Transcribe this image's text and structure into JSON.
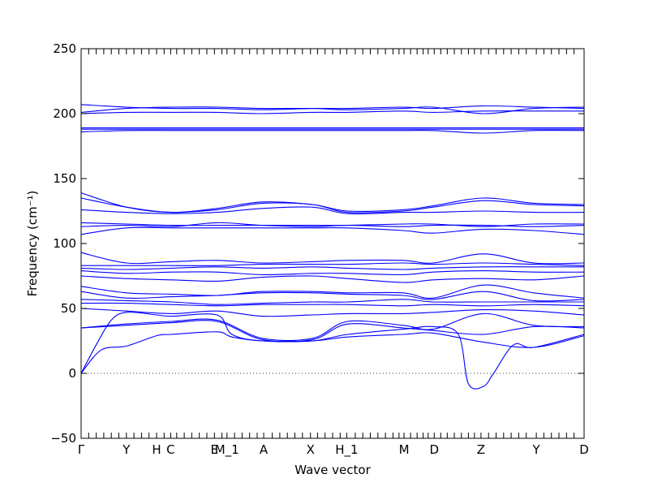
{
  "chart_data": {
    "type": "line",
    "title": "",
    "xlabel": "Wave vector",
    "ylabel": "Frequency (cm⁻¹)",
    "ylim": [
      -50,
      250
    ],
    "yticks": [
      -50,
      0,
      50,
      100,
      150,
      200,
      250
    ],
    "xlim": [
      0,
      1
    ],
    "grid": false,
    "line_color": "#0000ff",
    "zero_line": {
      "y": 0,
      "style": "dotted"
    },
    "high_symmetry_points": [
      {
        "label": "Γ",
        "x": 0.0
      },
      {
        "label": "Y",
        "x": 0.09
      },
      {
        "label": "H",
        "x": 0.15
      },
      {
        "label": "C",
        "x": 0.178
      },
      {
        "label": "E",
        "x": 0.265
      },
      {
        "label": "M_1",
        "x": 0.29
      },
      {
        "label": "A",
        "x": 0.363
      },
      {
        "label": "X",
        "x": 0.456
      },
      {
        "label": "H_1",
        "x": 0.528
      },
      {
        "label": "M",
        "x": 0.642
      },
      {
        "label": "D",
        "x": 0.702
      },
      {
        "label": "Z",
        "x": 0.795
      },
      {
        "label": "Y",
        "x": 0.905
      },
      {
        "label": "D",
        "x": 1.0
      }
    ],
    "minor_ticks": [
      0.015,
      0.03,
      0.045,
      0.06,
      0.075,
      0.105,
      0.12,
      0.135,
      0.165,
      0.19,
      0.205,
      0.22,
      0.235,
      0.25,
      0.28,
      0.305,
      0.32,
      0.335,
      0.35,
      0.38,
      0.395,
      0.41,
      0.425,
      0.44,
      0.47,
      0.485,
      0.5,
      0.515,
      0.545,
      0.56,
      0.575,
      0.59,
      0.605,
      0.62,
      0.632,
      0.655,
      0.668,
      0.68,
      0.69,
      0.715,
      0.728,
      0.742,
      0.756,
      0.77,
      0.782,
      0.81,
      0.825,
      0.84,
      0.855,
      0.87,
      0.885,
      0.92,
      0.935,
      0.95,
      0.965,
      0.98
    ],
    "series": [
      {
        "x": [
          0,
          0.09,
          0.18,
          0.27,
          0.36,
          0.46,
          0.53,
          0.64,
          0.7,
          0.8,
          0.9,
          1.0
        ],
        "values": [
          207,
          205,
          204,
          204,
          203,
          204,
          204,
          205,
          204,
          206,
          205,
          204
        ]
      },
      {
        "x": [
          0,
          0.09,
          0.18,
          0.27,
          0.36,
          0.46,
          0.53,
          0.64,
          0.7,
          0.8,
          0.9,
          1.0
        ],
        "values": [
          201,
          204,
          205,
          205,
          204,
          204,
          203,
          204,
          205,
          200,
          204,
          205
        ]
      },
      {
        "x": [
          0,
          0.09,
          0.18,
          0.27,
          0.36,
          0.46,
          0.53,
          0.64,
          0.7,
          0.8,
          0.9,
          1.0
        ],
        "values": [
          200,
          201,
          201,
          201,
          200,
          201,
          201,
          202,
          201,
          202,
          202,
          202
        ]
      },
      {
        "x": [
          0,
          0.09,
          0.18,
          0.27,
          0.36,
          0.46,
          0.53,
          0.64,
          0.7,
          0.8,
          0.9,
          1.0
        ],
        "values": [
          189,
          189,
          189,
          189,
          189,
          189,
          189,
          189,
          189,
          189,
          189,
          189
        ]
      },
      {
        "x": [
          0,
          0.09,
          0.18,
          0.27,
          0.36,
          0.46,
          0.53,
          0.64,
          0.7,
          0.8,
          0.9,
          1.0
        ],
        "values": [
          188,
          188,
          188,
          188,
          188,
          188,
          188,
          188,
          188,
          188,
          188,
          188
        ]
      },
      {
        "x": [
          0,
          0.09,
          0.18,
          0.27,
          0.36,
          0.46,
          0.53,
          0.64,
          0.7,
          0.8,
          0.9,
          1.0
        ],
        "values": [
          186,
          187,
          187,
          187,
          187,
          187,
          187,
          187,
          187,
          185,
          187,
          187
        ]
      },
      {
        "x": [
          0,
          0.09,
          0.18,
          0.27,
          0.36,
          0.46,
          0.53,
          0.64,
          0.7,
          0.8,
          0.9,
          1.0
        ],
        "values": [
          139,
          128,
          124,
          127,
          132,
          130,
          125,
          126,
          129,
          135,
          131,
          130
        ]
      },
      {
        "x": [
          0,
          0.09,
          0.18,
          0.27,
          0.36,
          0.46,
          0.53,
          0.64,
          0.7,
          0.8,
          0.9,
          1.0
        ],
        "values": [
          135,
          128,
          124,
          126,
          131,
          130,
          124,
          125,
          128,
          133,
          130,
          129
        ]
      },
      {
        "x": [
          0,
          0.09,
          0.18,
          0.27,
          0.36,
          0.46,
          0.53,
          0.64,
          0.7,
          0.8,
          0.9,
          1.0
        ],
        "values": [
          126,
          124,
          123,
          124,
          127,
          128,
          123,
          124,
          124,
          125,
          124,
          124
        ]
      },
      {
        "x": [
          0,
          0.09,
          0.18,
          0.27,
          0.36,
          0.46,
          0.53,
          0.64,
          0.7,
          0.8,
          0.9,
          1.0
        ],
        "values": [
          116,
          115,
          114,
          114,
          114,
          114,
          114,
          115,
          115,
          113,
          115,
          115
        ]
      },
      {
        "x": [
          0,
          0.09,
          0.18,
          0.27,
          0.36,
          0.46,
          0.53,
          0.64,
          0.7,
          0.8,
          0.9,
          1.0
        ],
        "values": [
          113,
          114,
          113,
          116,
          114,
          113,
          114,
          113,
          114,
          114,
          113,
          114
        ]
      },
      {
        "x": [
          0,
          0.09,
          0.18,
          0.27,
          0.36,
          0.46,
          0.53,
          0.64,
          0.7,
          0.8,
          0.9,
          1.0
        ],
        "values": [
          107,
          112,
          112,
          112,
          112,
          112,
          112,
          110,
          108,
          111,
          110,
          107
        ]
      },
      {
        "x": [
          0,
          0.09,
          0.18,
          0.27,
          0.36,
          0.46,
          0.53,
          0.64,
          0.7,
          0.8,
          0.9,
          1.0
        ],
        "values": [
          93,
          85,
          86,
          87,
          85,
          86,
          87,
          87,
          85,
          92,
          85,
          85
        ]
      },
      {
        "x": [
          0,
          0.09,
          0.18,
          0.27,
          0.36,
          0.46,
          0.53,
          0.64,
          0.7,
          0.8,
          0.9,
          1.0
        ],
        "values": [
          83,
          83,
          83,
          83,
          84,
          84,
          84,
          85,
          84,
          85,
          84,
          83
        ]
      },
      {
        "x": [
          0,
          0.09,
          0.18,
          0.27,
          0.36,
          0.46,
          0.53,
          0.64,
          0.7,
          0.8,
          0.9,
          1.0
        ],
        "values": [
          81,
          80,
          81,
          82,
          81,
          82,
          81,
          80,
          81,
          82,
          82,
          82
        ]
      },
      {
        "x": [
          0,
          0.09,
          0.18,
          0.27,
          0.36,
          0.46,
          0.53,
          0.64,
          0.7,
          0.8,
          0.9,
          1.0
        ],
        "values": [
          79,
          77,
          78,
          78,
          76,
          77,
          77,
          76,
          78,
          79,
          78,
          78
        ]
      },
      {
        "x": [
          0,
          0.09,
          0.18,
          0.27,
          0.36,
          0.46,
          0.53,
          0.64,
          0.7,
          0.8,
          0.9,
          1.0
        ],
        "values": [
          75,
          73,
          72,
          71,
          74,
          75,
          73,
          70,
          72,
          73,
          72,
          75
        ]
      },
      {
        "x": [
          0,
          0.09,
          0.18,
          0.27,
          0.36,
          0.46,
          0.53,
          0.64,
          0.7,
          0.8,
          0.9,
          1.0
        ],
        "values": [
          67,
          62,
          61,
          60,
          63,
          63,
          62,
          62,
          58,
          68,
          62,
          58
        ]
      },
      {
        "x": [
          0,
          0.09,
          0.18,
          0.27,
          0.36,
          0.46,
          0.53,
          0.64,
          0.7,
          0.8,
          0.9,
          1.0
        ],
        "values": [
          63,
          58,
          59,
          60,
          62,
          62,
          61,
          60,
          57,
          63,
          56,
          57
        ]
      },
      {
        "x": [
          0,
          0.09,
          0.18,
          0.27,
          0.36,
          0.46,
          0.53,
          0.64,
          0.7,
          0.8,
          0.9,
          1.0
        ],
        "values": [
          57,
          56,
          55,
          53,
          54,
          55,
          55,
          57,
          55,
          55,
          55,
          55
        ]
      },
      {
        "x": [
          0,
          0.09,
          0.18,
          0.27,
          0.36,
          0.46,
          0.53,
          0.64,
          0.7,
          0.8,
          0.9,
          1.0
        ],
        "values": [
          54,
          54,
          53,
          52,
          53,
          53,
          53,
          52,
          53,
          52,
          53,
          52
        ]
      },
      {
        "x": [
          0,
          0.09,
          0.18,
          0.27,
          0.36,
          0.46,
          0.53,
          0.64,
          0.7,
          0.8,
          0.9,
          1.0
        ],
        "values": [
          50,
          48,
          46,
          48,
          44,
          45,
          46,
          46,
          47,
          49,
          48,
          45
        ]
      },
      {
        "x": [
          0,
          0.09,
          0.18,
          0.27,
          0.36,
          0.46,
          0.53,
          0.64,
          0.7,
          0.8,
          0.9,
          1.0
        ],
        "values": [
          35,
          38,
          40,
          41,
          27,
          27,
          40,
          37,
          34,
          46,
          37,
          36
        ]
      },
      {
        "x": [
          0,
          0.09,
          0.18,
          0.27,
          0.36,
          0.46,
          0.53,
          0.64,
          0.7,
          0.8,
          0.9,
          1.0
        ],
        "values": [
          35,
          37,
          39,
          40,
          26,
          26,
          38,
          35,
          33,
          30,
          36,
          35
        ]
      },
      {
        "x": [
          0,
          0.03,
          0.06,
          0.09,
          0.15,
          0.18,
          0.27,
          0.3,
          0.36,
          0.46,
          0.53,
          0.64,
          0.7,
          0.75,
          0.77,
          0.8,
          0.82,
          0.86,
          0.9,
          1.0
        ],
        "values": [
          0,
          22,
          41,
          47,
          45,
          44,
          45,
          30,
          25,
          25,
          30,
          34,
          36,
          30,
          -8,
          -10,
          0,
          22,
          20,
          30
        ]
      },
      {
        "x": [
          0,
          0.04,
          0.09,
          0.15,
          0.18,
          0.27,
          0.3,
          0.36,
          0.46,
          0.53,
          0.64,
          0.7,
          0.8,
          0.9,
          1.0
        ],
        "values": [
          0,
          18,
          21,
          29,
          30,
          32,
          28,
          25,
          25,
          28,
          30,
          31,
          24,
          20,
          29
        ]
      }
    ]
  }
}
